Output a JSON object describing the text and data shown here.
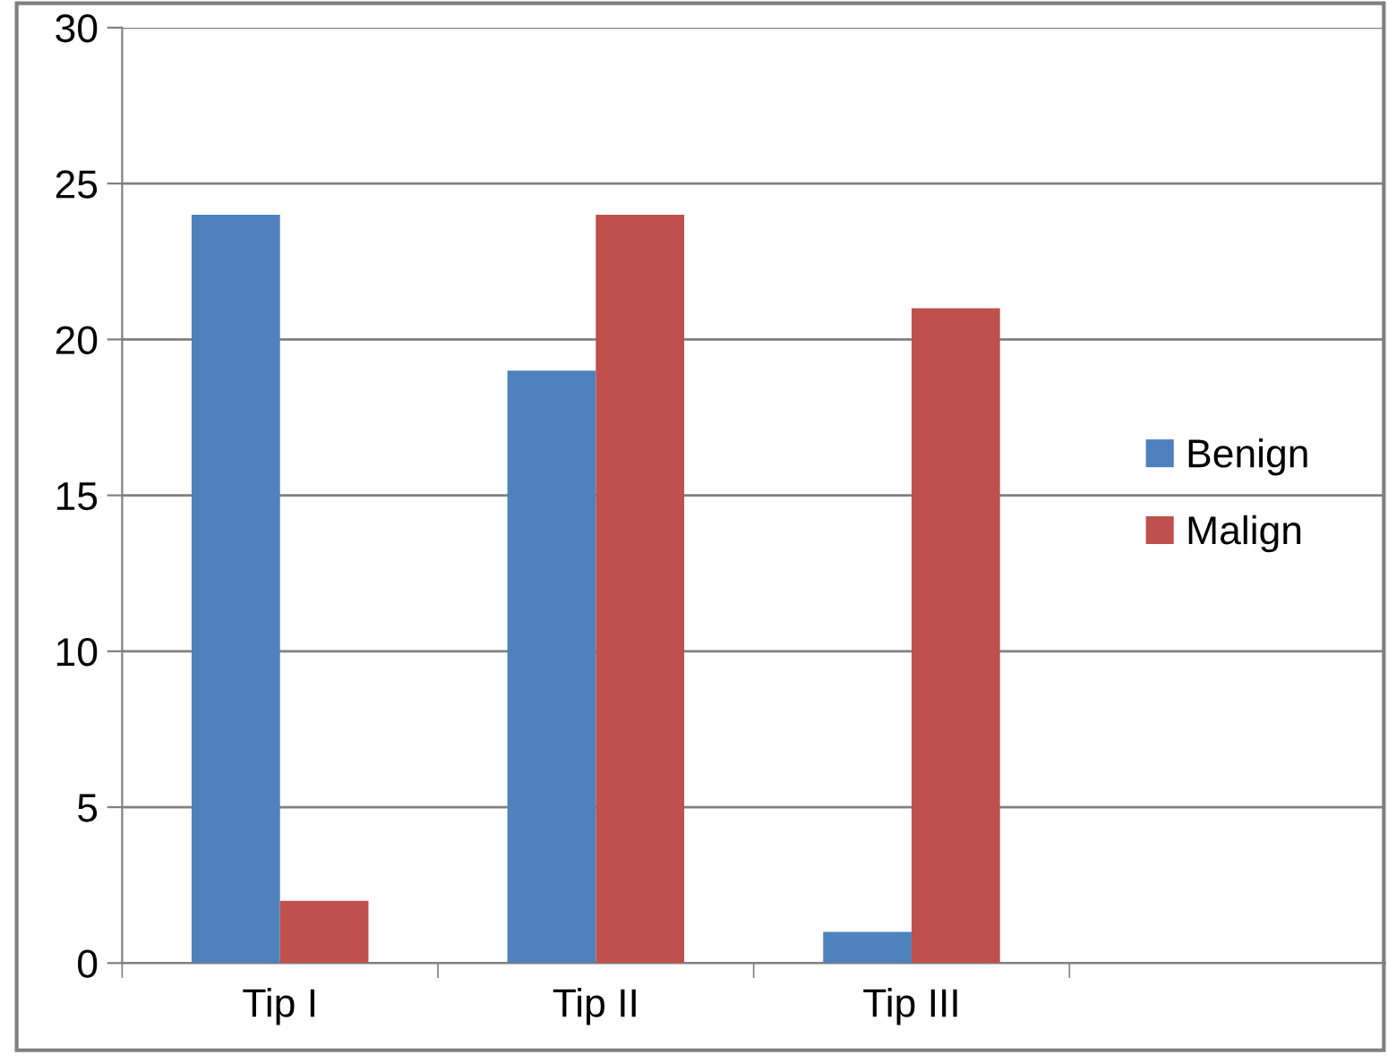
{
  "chart_data": {
    "type": "bar",
    "categories": [
      "Tip I",
      "Tip II",
      "Tip III",
      null
    ],
    "series": [
      {
        "name": "Benign",
        "color": "#4f81bd",
        "values": [
          24,
          19,
          1,
          null
        ]
      },
      {
        "name": "Malign",
        "color": "#c0504d",
        "values": [
          2,
          24,
          21,
          null
        ]
      }
    ],
    "ylim": [
      0,
      30
    ],
    "yticks": [
      0,
      5,
      10,
      15,
      20,
      25,
      30
    ],
    "grid": "y",
    "legend": "right"
  }
}
